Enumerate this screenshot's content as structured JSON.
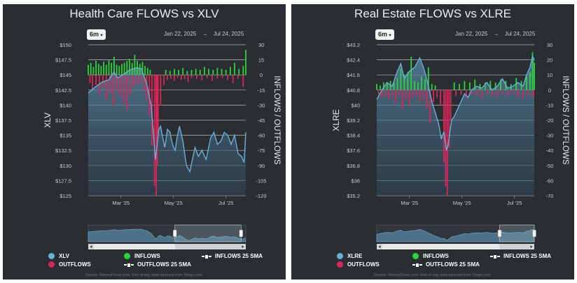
{
  "chart_data": [
    {
      "type": "combo",
      "title": "Health Care FLOWS vs XLV",
      "range_button": "6m",
      "date_start": "Jan 22, 2025",
      "date_arrow": "→",
      "date_end": "Jul 24, 2025",
      "y_left_label": "XLV",
      "y_right_label": "INFLOWS / OUTFLOWS",
      "y_left_ticks": [
        "$150",
        "$147.5",
        "$145",
        "$142.5",
        "$140",
        "$137.5",
        "$135",
        "$132.5",
        "$130",
        "$127.5",
        "$125"
      ],
      "y_left_range": [
        125,
        150
      ],
      "y_right_ticks": [
        "30",
        "15",
        "0",
        "-15",
        "-30",
        "-45",
        "-60",
        "-75",
        "-90",
        "-105",
        "-120"
      ],
      "y_right_range": [
        -120,
        30
      ],
      "x_ticks": [
        "Mar '25",
        "May '25",
        "Jul '25"
      ],
      "x_tick_days": [
        38,
        99,
        160
      ],
      "x_days": 183,
      "price_series": {
        "name": "XLV",
        "days": [
          0,
          8,
          16,
          24,
          30,
          34,
          40,
          48,
          56,
          62,
          68,
          73,
          76,
          78,
          80,
          82,
          84,
          86,
          89,
          92,
          95,
          97,
          99,
          101,
          103,
          106,
          110,
          114,
          118,
          121,
          124,
          128,
          132,
          137,
          142,
          146,
          150,
          154,
          158,
          162,
          166,
          170,
          174,
          178,
          181,
          183
        ],
        "values": [
          142.0,
          143.0,
          143.8,
          144.2,
          145.5,
          144.5,
          145.0,
          145.8,
          146.2,
          146.0,
          143.5,
          140.0,
          135.0,
          131.0,
          133.5,
          136.0,
          136.5,
          135.0,
          133.0,
          136.0,
          135.5,
          134.0,
          133.0,
          132.5,
          134.5,
          136.5,
          134.0,
          130.0,
          129.0,
          131.0,
          133.0,
          131.5,
          132.5,
          131.0,
          134.5,
          135.5,
          133.5,
          134.0,
          135.5,
          135.0,
          133.5,
          135.0,
          132.0,
          131.5,
          130.5,
          135.5
        ]
      },
      "flow_series": [
        {
          "name": "INFLOWS",
          "days": [
            0,
            3,
            6,
            9,
            12,
            15,
            18,
            21,
            24,
            27,
            30,
            33,
            36,
            39,
            42,
            45,
            48,
            51,
            54,
            57,
            60,
            63,
            66,
            69,
            72,
            90,
            95,
            100,
            105,
            110,
            115,
            120,
            125,
            130,
            135,
            140,
            145,
            150,
            155,
            160,
            165,
            170,
            175,
            180,
            183
          ],
          "values": [
            10,
            12,
            8,
            14,
            11,
            9,
            13,
            10,
            15,
            12,
            18,
            10,
            9,
            11,
            12,
            14,
            16,
            12,
            20,
            14,
            11,
            13,
            9,
            7,
            5,
            5,
            4,
            6,
            5,
            7,
            4,
            5,
            6,
            5,
            8,
            6,
            5,
            7,
            6,
            5,
            8,
            12,
            6,
            9,
            25
          ]
        },
        {
          "name": "OUTFLOWS",
          "days": [
            2,
            5,
            9,
            13,
            17,
            21,
            25,
            29,
            33,
            37,
            41,
            45,
            49,
            53,
            57,
            61,
            65,
            68,
            71,
            74,
            77,
            79,
            80,
            81,
            84,
            88,
            92,
            96,
            100,
            104,
            108,
            112,
            116,
            120,
            126,
            132,
            138,
            144,
            150,
            156,
            162,
            168,
            174,
            180
          ],
          "values": [
            -8,
            -14,
            -10,
            -20,
            -12,
            -25,
            -18,
            -30,
            -15,
            -22,
            -28,
            -35,
            -20,
            -12,
            -10,
            -8,
            -15,
            -25,
            -40,
            -70,
            -110,
            -120,
            -90,
            -60,
            -30,
            -10,
            -5,
            -4,
            -6,
            -3,
            -5,
            -4,
            -7,
            -3,
            -4,
            -5,
            -3,
            -6,
            -4,
            -3,
            -5,
            -8,
            -4,
            -12
          ]
        }
      ],
      "legend": [
        "XLV",
        "INFLOWS",
        "OUTFLOWS",
        "INFLOWS 25 SMA",
        "OUTFLOWS 25 SMA"
      ],
      "nav_window": [
        0.55,
        0.97
      ],
      "source_text": "Source: MoneyFlows.com. End of day data sourced from Tiingo.com."
    },
    {
      "type": "combo",
      "title": "Real Estate FLOWS vs XLRE",
      "range_button": "6m",
      "date_start": "Jan 22, 2025",
      "date_arrow": "→",
      "date_end": "Jul 24, 2025",
      "y_left_label": "XLRE",
      "y_right_label": "INFLOWS / OUTFLOWS",
      "y_left_ticks": [
        "$43.2",
        "$42.4",
        "$41.6",
        "$40.8",
        "$40",
        "$39.2",
        "$38.4",
        "$37.6",
        "$36.8",
        "$36",
        "$35.2"
      ],
      "y_left_range": [
        35.2,
        43.2
      ],
      "y_right_ticks": [
        "30",
        "20",
        "10",
        "0",
        "-10",
        "-20",
        "-30",
        "-40",
        "-50",
        "-60",
        "-70"
      ],
      "y_right_range": [
        -70,
        30
      ],
      "x_ticks": [
        "Mar '25",
        "May '25",
        "Jul '25"
      ],
      "x_tick_days": [
        38,
        99,
        160
      ],
      "x_days": 183,
      "price_series": {
        "name": "XLRE",
        "days": [
          0,
          6,
          12,
          18,
          24,
          28,
          32,
          38,
          44,
          50,
          55,
          60,
          64,
          68,
          72,
          75,
          78,
          81,
          83,
          85,
          87,
          90,
          94,
          98,
          102,
          106,
          110,
          116,
          122,
          128,
          134,
          140,
          146,
          152,
          158,
          164,
          170,
          174,
          178,
          181,
          183
        ],
        "values": [
          40.3,
          40.8,
          41.2,
          41.0,
          41.8,
          42.2,
          41.4,
          41.8,
          42.0,
          42.5,
          41.9,
          41.0,
          40.2,
          39.6,
          39.0,
          38.2,
          38.6,
          37.6,
          37.9,
          38.6,
          39.2,
          39.4,
          39.8,
          40.2,
          40.6,
          40.4,
          40.8,
          41.0,
          40.9,
          41.2,
          40.8,
          41.0,
          41.4,
          40.9,
          41.0,
          41.2,
          41.0,
          41.6,
          42.0,
          42.6,
          42.4
        ]
      },
      "flow_series": [
        {
          "name": "INFLOWS",
          "days": [
            0,
            4,
            8,
            12,
            16,
            20,
            24,
            28,
            32,
            36,
            40,
            44,
            48,
            52,
            56,
            60,
            64,
            68,
            90,
            96,
            102,
            108,
            114,
            120,
            126,
            132,
            138,
            144,
            150,
            156,
            162,
            168,
            174,
            178,
            181,
            183
          ],
          "values": [
            4,
            3,
            5,
            4,
            6,
            5,
            8,
            14,
            10,
            12,
            22,
            6,
            5,
            9,
            7,
            15,
            4,
            3,
            5,
            4,
            6,
            5,
            7,
            4,
            5,
            6,
            5,
            7,
            6,
            4,
            8,
            6,
            9,
            12,
            25,
            18
          ]
        },
        {
          "name": "OUTFLOWS",
          "days": [
            2,
            6,
            10,
            14,
            18,
            22,
            26,
            30,
            34,
            38,
            42,
            46,
            50,
            54,
            58,
            62,
            66,
            70,
            74,
            78,
            80,
            82,
            84,
            86,
            92,
            98,
            104,
            110,
            116,
            122,
            128,
            134,
            140,
            146,
            152,
            158,
            164,
            170,
            176,
            182
          ],
          "values": [
            -3,
            -5,
            -4,
            -6,
            -5,
            -8,
            -4,
            -12,
            -6,
            -10,
            -5,
            -4,
            -8,
            -6,
            -12,
            -22,
            -8,
            -5,
            -10,
            -48,
            -64,
            -70,
            -38,
            -20,
            -4,
            -3,
            -5,
            -3,
            -4,
            -6,
            -3,
            -4,
            -5,
            -3,
            -4,
            -3,
            -5,
            -6,
            -4,
            -5
          ]
        }
      ],
      "legend": [
        "XLRE",
        "INFLOWS",
        "OUTFLOWS",
        "INFLOWS 25 SMA",
        "OUTFLOWS 25 SMA"
      ],
      "nav_window": [
        0.78,
        1.0
      ],
      "source_text": "Source: MoneyFlows.com. End of day data sourced from Tiingo.com."
    }
  ],
  "colors": {
    "price": "#6baed6",
    "inflow": "#2bd43a",
    "outflow": "#d9265a",
    "background": "#2a2e33",
    "grid": "#d0d4d8"
  }
}
